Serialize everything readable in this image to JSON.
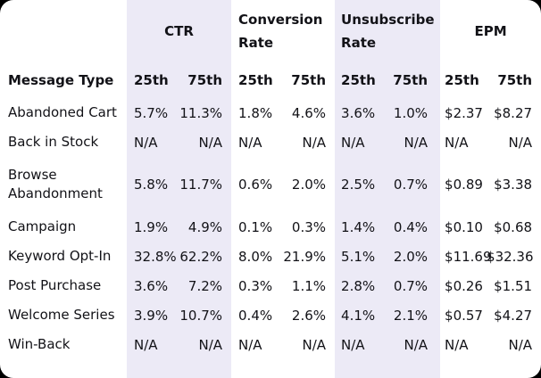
{
  "colors": {
    "page_background": "#000000",
    "card_background": "#ffffff",
    "band_background": "#eceaf6",
    "text": "#121217"
  },
  "table": {
    "row_header": "Message Type",
    "column_groups": [
      {
        "label": "CTR"
      },
      {
        "label": "Conversion Rate"
      },
      {
        "label": "Unsubscribe Rate"
      },
      {
        "label": "EPM"
      }
    ],
    "percentile_headers": [
      "25th",
      "75th"
    ],
    "rows": [
      {
        "label": "Abandoned Cart",
        "values": [
          "5.7%",
          "11.3%",
          "1.8%",
          "4.6%",
          "3.6%",
          "1.0%",
          "$2.37",
          "$8.27"
        ]
      },
      {
        "label": "Back in Stock",
        "values": [
          "N/A",
          "N/A",
          "N/A",
          "N/A",
          "N/A",
          "N/A",
          "N/A",
          "N/A"
        ]
      },
      {
        "label": "Browse Abandonment",
        "values": [
          "5.8%",
          "11.7%",
          "0.6%",
          "2.0%",
          "2.5%",
          "0.7%",
          "$0.89",
          "$3.38"
        ]
      },
      {
        "label": "Campaign",
        "values": [
          "1.9%",
          "4.9%",
          "0.1%",
          "0.3%",
          "1.4%",
          "0.4%",
          "$0.10",
          "$0.68"
        ]
      },
      {
        "label": "Keyword Opt-In",
        "values": [
          "32.8%",
          "62.2%",
          "8.0%",
          "21.9%",
          "5.1%",
          "2.0%",
          "$11.69",
          "$32.36"
        ]
      },
      {
        "label": "Post Purchase",
        "values": [
          "3.6%",
          "7.2%",
          "0.3%",
          "1.1%",
          "2.8%",
          "0.7%",
          "$0.26",
          "$1.51"
        ]
      },
      {
        "label": "Welcome Series",
        "values": [
          "3.9%",
          "10.7%",
          "0.4%",
          "2.6%",
          "4.1%",
          "2.1%",
          "$0.57",
          "$4.27"
        ]
      },
      {
        "label": "Win-Back",
        "values": [
          "N/A",
          "N/A",
          "N/A",
          "N/A",
          "N/A",
          "N/A",
          "N/A",
          "N/A"
        ]
      }
    ]
  },
  "chart_data": {
    "type": "table",
    "title": "",
    "column_groups": [
      "CTR",
      "Conversion Rate",
      "Unsubscribe Rate",
      "EPM"
    ],
    "columns": [
      "Message Type",
      "CTR 25th",
      "CTR 75th",
      "Conversion Rate 25th",
      "Conversion Rate 75th",
      "Unsubscribe Rate 25th",
      "Unsubscribe Rate 75th",
      "EPM 25th",
      "EPM 75th"
    ],
    "rows": [
      [
        "Abandoned Cart",
        "5.7%",
        "11.3%",
        "1.8%",
        "4.6%",
        "3.6%",
        "1.0%",
        "$2.37",
        "$8.27"
      ],
      [
        "Back in Stock",
        "N/A",
        "N/A",
        "N/A",
        "N/A",
        "N/A",
        "N/A",
        "N/A",
        "N/A"
      ],
      [
        "Browse Abandonment",
        "5.8%",
        "11.7%",
        "0.6%",
        "2.0%",
        "2.5%",
        "0.7%",
        "$0.89",
        "$3.38"
      ],
      [
        "Campaign",
        "1.9%",
        "4.9%",
        "0.1%",
        "0.3%",
        "1.4%",
        "0.4%",
        "$0.10",
        "$0.68"
      ],
      [
        "Keyword Opt-In",
        "32.8%",
        "62.2%",
        "8.0%",
        "21.9%",
        "5.1%",
        "2.0%",
        "$11.69",
        "$32.36"
      ],
      [
        "Post Purchase",
        "3.6%",
        "7.2%",
        "0.3%",
        "1.1%",
        "2.8%",
        "0.7%",
        "$0.26",
        "$1.51"
      ],
      [
        "Welcome Series",
        "3.9%",
        "10.7%",
        "0.4%",
        "2.6%",
        "4.1%",
        "2.1%",
        "$0.57",
        "$4.27"
      ],
      [
        "Win-Back",
        "N/A",
        "N/A",
        "N/A",
        "N/A",
        "N/A",
        "N/A",
        "N/A",
        "N/A"
      ]
    ],
    "highlighted_column_bands": [
      "CTR",
      "Unsubscribe Rate"
    ],
    "layout_hints": {
      "band_color": "#eceaf6",
      "percentile_25_align": "left",
      "percentile_75_align": "right"
    }
  }
}
